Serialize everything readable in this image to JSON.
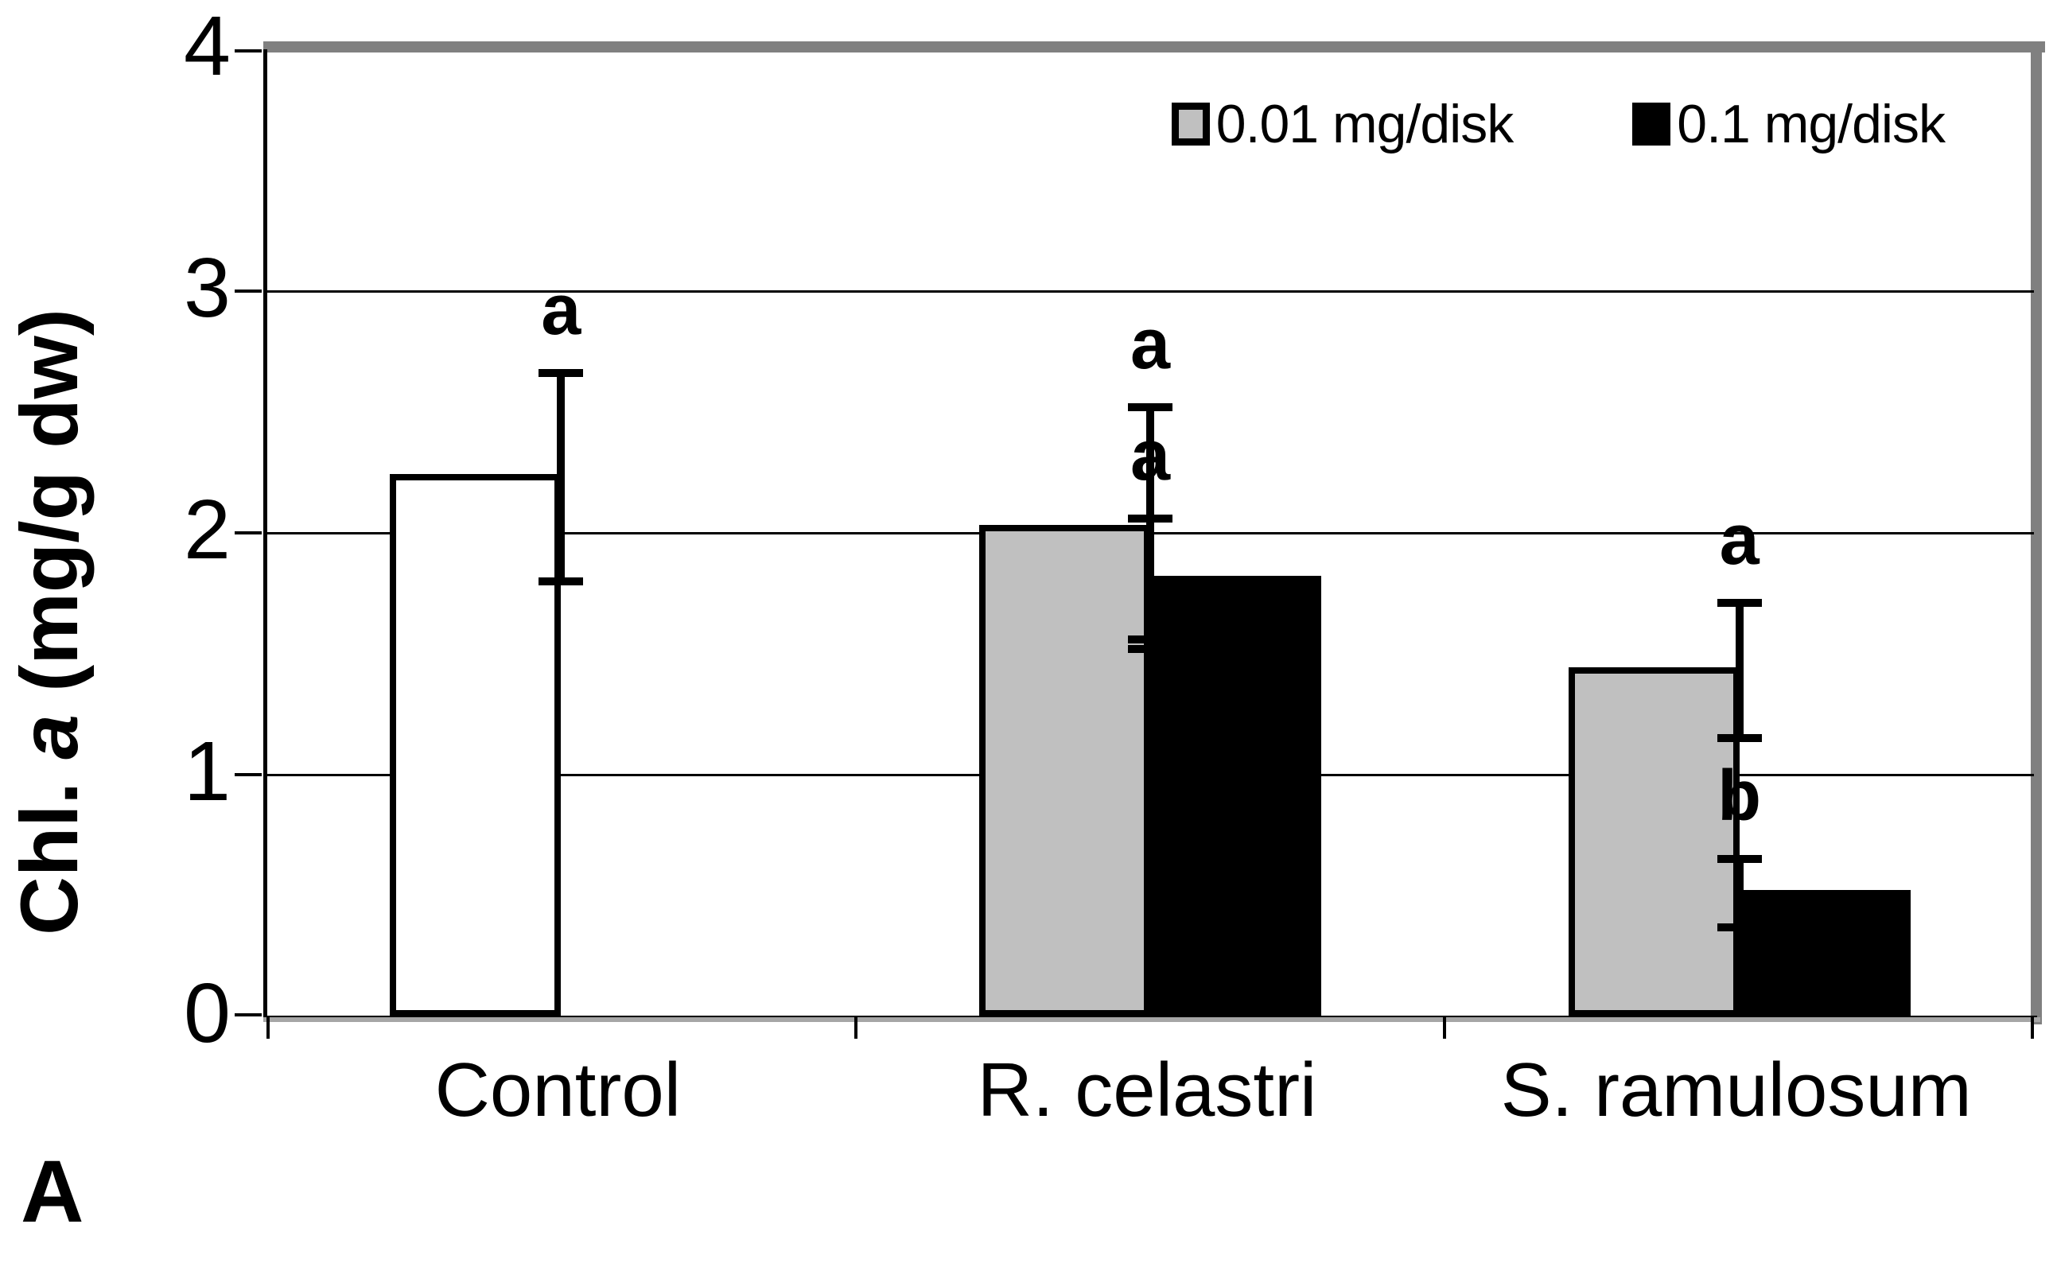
{
  "chart_data": {
    "type": "bar",
    "title": "",
    "ylabel": "Chl. a (mg/g dw)",
    "ylabel_parts": {
      "prefix": "Chl. ",
      "italic": "a",
      "suffix": " (mg/g dw)"
    },
    "panel_label": "A",
    "ylim": [
      0,
      4
    ],
    "yticks": [
      "0",
      "1",
      "2",
      "3",
      "4"
    ],
    "gridline_values": [
      1,
      2,
      3
    ],
    "grid": "on-horizontal",
    "legend_position": "top-right-inside",
    "categories": [
      "Control",
      "R. celastri",
      "S. ramulosum"
    ],
    "series": [
      {
        "name": "0.01 mg/disk",
        "swatch_color": "#c0c0c0"
      },
      {
        "name": "0.1 mg/disk",
        "swatch_color": "#000000"
      }
    ],
    "bars": [
      {
        "category": "Control",
        "cat_index": 0,
        "slot": 0,
        "value": 2.23,
        "error": 0.43,
        "fill": "#ffffff",
        "sig_letter": "a"
      },
      {
        "category": "R. celastri",
        "cat_index": 1,
        "slot": 0,
        "value": 2.02,
        "error": 0.5,
        "fill": "#c0c0c0",
        "sig_letter": "a"
      },
      {
        "category": "R. celastri",
        "cat_index": 1,
        "slot": 1,
        "value": 1.81,
        "error": 0.25,
        "fill": "#000000",
        "sig_letter": "a"
      },
      {
        "category": "S. ramulosum",
        "cat_index": 2,
        "slot": 0,
        "value": 1.43,
        "error": 0.28,
        "fill": "#c0c0c0",
        "sig_letter": "a"
      },
      {
        "category": "S. ramulosum",
        "cat_index": 2,
        "slot": 1,
        "value": 0.51,
        "error": 0.14,
        "fill": "#000000",
        "sig_letter": "b"
      }
    ],
    "colors": {
      "frame": "#808080",
      "axis": "#000000",
      "grid": "#000000",
      "bar_border": "#000000",
      "gray_fill": "#c0c0c0",
      "black_fill": "#000000",
      "white_fill": "#ffffff"
    }
  }
}
